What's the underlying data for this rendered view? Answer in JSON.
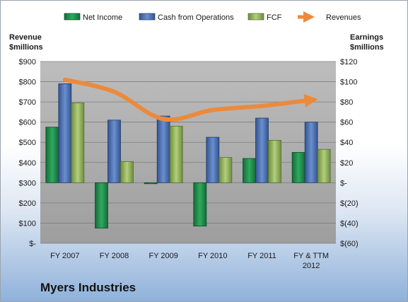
{
  "company_name": "Myers Industries",
  "chart_data": {
    "type": "bar",
    "categories": [
      "FY 2007",
      "FY 2008",
      "FY 2009",
      "FY 2010",
      "FY 2011",
      "FY & TTM 2012"
    ],
    "left_axis": {
      "label_line1": "Revenue",
      "label_line2": "$millions",
      "ylim": [
        0,
        900
      ],
      "ticks": [
        0,
        100,
        200,
        300,
        400,
        500,
        600,
        700,
        800,
        900
      ],
      "tick_labels": [
        "$-",
        "$100",
        "$200",
        "$300",
        "$400",
        "$500",
        "$600",
        "$700",
        "$800",
        "$900"
      ]
    },
    "right_axis": {
      "label_line1": "Earnings",
      "label_line2": "$millions",
      "ylim": [
        -60,
        120
      ],
      "ticks": [
        -60,
        -40,
        -20,
        0,
        20,
        40,
        60,
        80,
        100,
        120
      ],
      "tick_labels": [
        "$(60)",
        "$(40)",
        "$(20)",
        "$-",
        "$20",
        "$40",
        "$60",
        "$80",
        "$100",
        "$120"
      ]
    },
    "series": [
      {
        "name": "Net Income",
        "axis": "right",
        "kind": "bar",
        "color": "#1f8a4c",
        "values": [
          55,
          -45,
          -1,
          -43,
          24,
          30
        ]
      },
      {
        "name": "Cash from Operations",
        "axis": "right",
        "kind": "bar",
        "color": "#4a6fb0",
        "values": [
          98,
          62,
          66,
          45,
          64,
          60
        ]
      },
      {
        "name": "FCF",
        "axis": "right",
        "kind": "bar",
        "color": "#93b160",
        "values": [
          79,
          21,
          56,
          25,
          42,
          33
        ]
      },
      {
        "name": "Revenues",
        "axis": "left",
        "kind": "line",
        "color": "#ec8a3c",
        "values": [
          810,
          750,
          615,
          660,
          680,
          710
        ]
      }
    ],
    "legend_position": "top",
    "grid": true
  }
}
